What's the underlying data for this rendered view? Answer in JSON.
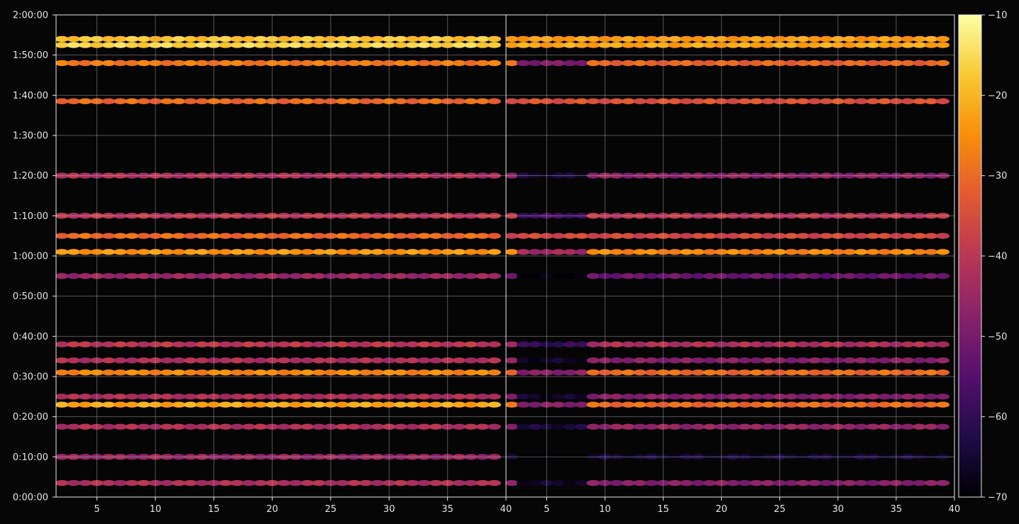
{
  "chart_data": {
    "type": "heatmap",
    "title": "",
    "xlabel": "",
    "ylabel": "",
    "panels": [
      {
        "name": "",
        "xlim": [
          1.5,
          40
        ],
        "x_ticks": [
          "5",
          "10",
          "15",
          "20",
          "25",
          "30",
          "35",
          "40"
        ]
      },
      {
        "name": "",
        "xlim": [
          1.5,
          40
        ],
        "x_ticks": [
          "5",
          "10",
          "15",
          "20",
          "25",
          "30",
          "35",
          "40"
        ]
      }
    ],
    "y_ticks": [
      "0:00:00",
      "0:10:00",
      "0:20:00",
      "0:30:00",
      "0:40:00",
      "0:50:00",
      "1:00:00",
      "1:10:00",
      "1:20:00",
      "1:30:00",
      "1:40:00",
      "1:50:00",
      "2:00:00"
    ],
    "ylim_seconds": [
      0,
      7200
    ],
    "grid": true,
    "colorbar": {
      "colormap": "inferno",
      "ticks": [
        "−10",
        "−20",
        "−30",
        "−40",
        "−50",
        "−60",
        "−70"
      ],
      "range": [
        -70,
        -10
      ]
    },
    "bands": [
      {
        "t": "1:54:00",
        "panel1": -18,
        "panel2": -23
      },
      {
        "t": "1:52:30",
        "panel1": -16,
        "panel2": -22
      },
      {
        "t": "1:48:00",
        "panel1": -28,
        "panel2": -31
      },
      {
        "t": "1:38:30",
        "panel1": -30,
        "panel2": -34
      },
      {
        "t": "1:20:00",
        "panel1": -42,
        "panel2": -47
      },
      {
        "t": "1:10:00",
        "panel1": -40,
        "panel2": -40
      },
      {
        "t": "1:05:00",
        "panel1": -30,
        "panel2": -36
      },
      {
        "t": "1:01:00",
        "panel1": -24,
        "panel2": -26
      },
      {
        "t": "0:55:00",
        "panel1": -45,
        "panel2": -52
      },
      {
        "t": "0:38:00",
        "panel1": -40,
        "panel2": -42
      },
      {
        "t": "0:34:00",
        "panel1": -42,
        "panel2": -48
      },
      {
        "t": "0:31:00",
        "panel1": -26,
        "panel2": -30
      },
      {
        "t": "0:25:00",
        "panel1": -42,
        "panel2": -48
      },
      {
        "t": "0:23:00",
        "panel1": -22,
        "panel2": -30
      },
      {
        "t": "0:17:30",
        "panel1": -42,
        "panel2": -46
      },
      {
        "t": "0:10:00",
        "panel1": -45,
        "panel2": -65
      },
      {
        "t": "0:03:30",
        "panel1": -42,
        "panel2": -48
      }
    ]
  }
}
